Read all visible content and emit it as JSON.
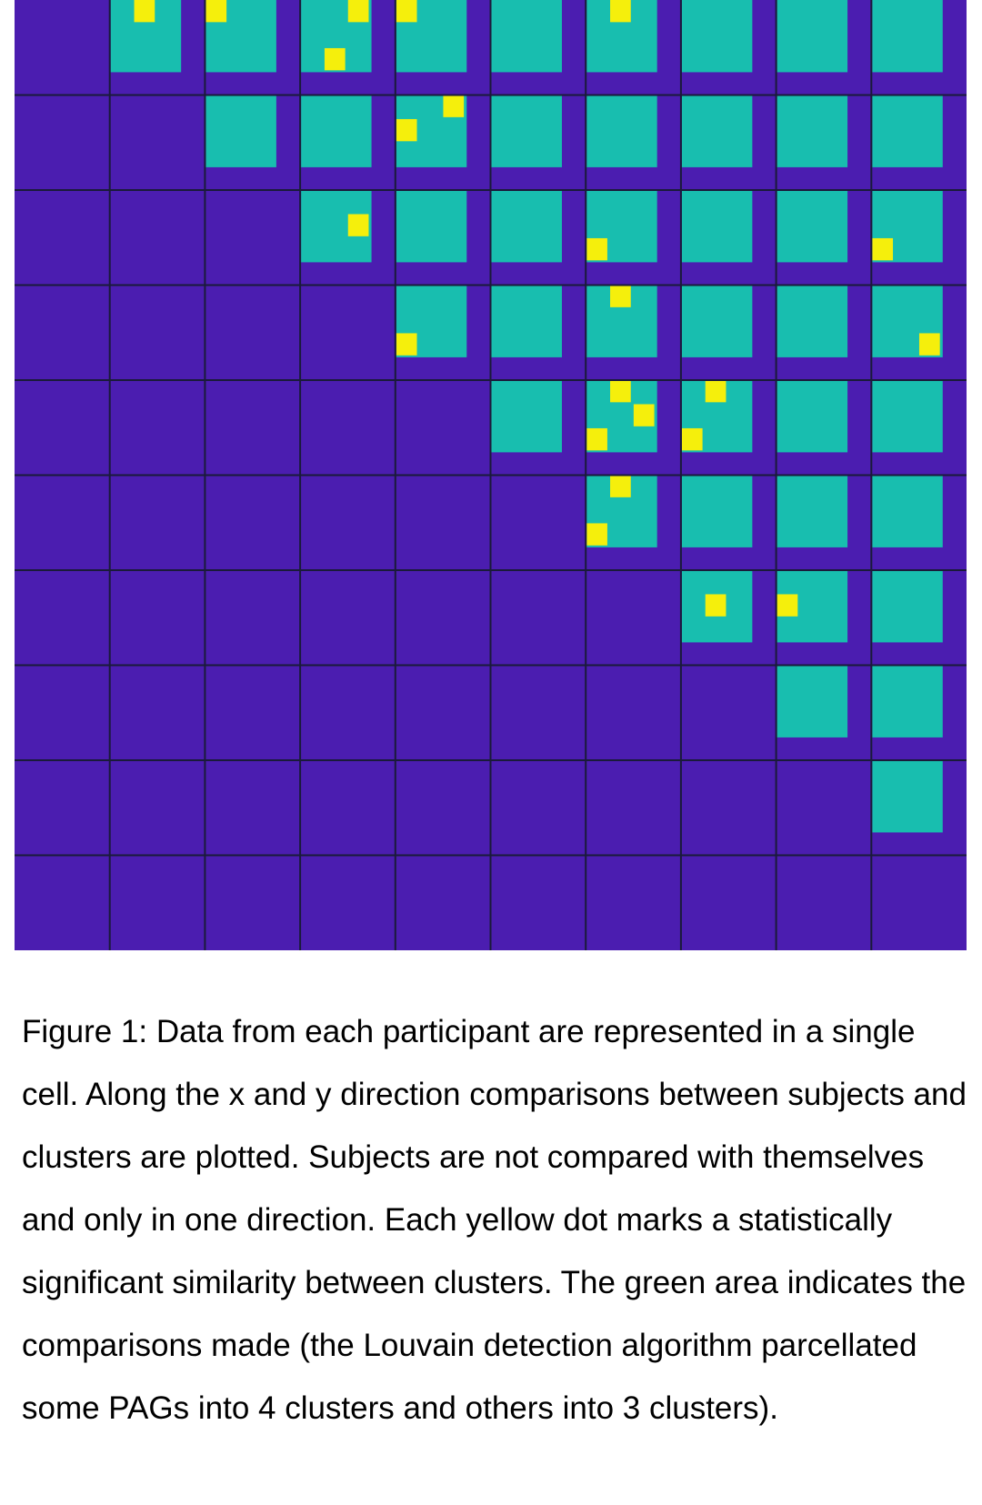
{
  "chart_data": {
    "type": "heatmap",
    "grid_size": 10,
    "colors": {
      "background": "#4B1DB0",
      "comparison_area": "#18BEAF",
      "significant": "#F5EF0C",
      "grid_line": "#1a1a3a"
    },
    "comparison_cells": [
      [
        0,
        1
      ],
      [
        0,
        2
      ],
      [
        0,
        3
      ],
      [
        0,
        4
      ],
      [
        0,
        5
      ],
      [
        0,
        6
      ],
      [
        0,
        7
      ],
      [
        0,
        8
      ],
      [
        0,
        9
      ],
      [
        1,
        2
      ],
      [
        1,
        3
      ],
      [
        1,
        4
      ],
      [
        1,
        5
      ],
      [
        1,
        6
      ],
      [
        1,
        7
      ],
      [
        1,
        8
      ],
      [
        1,
        9
      ],
      [
        2,
        3
      ],
      [
        2,
        4
      ],
      [
        2,
        5
      ],
      [
        2,
        6
      ],
      [
        2,
        7
      ],
      [
        2,
        8
      ],
      [
        2,
        9
      ],
      [
        3,
        4
      ],
      [
        3,
        5
      ],
      [
        3,
        6
      ],
      [
        3,
        7
      ],
      [
        3,
        8
      ],
      [
        3,
        9
      ],
      [
        4,
        5
      ],
      [
        4,
        6
      ],
      [
        4,
        7
      ],
      [
        4,
        8
      ],
      [
        4,
        9
      ],
      [
        5,
        6
      ],
      [
        5,
        7
      ],
      [
        5,
        8
      ],
      [
        5,
        9
      ],
      [
        6,
        7
      ],
      [
        6,
        8
      ],
      [
        6,
        9
      ],
      [
        7,
        8
      ],
      [
        7,
        9
      ],
      [
        8,
        9
      ]
    ],
    "significant_dots": [
      {
        "row": 0,
        "col": 1,
        "sub_x": 1,
        "sub_y": 0
      },
      {
        "row": 0,
        "col": 2,
        "sub_x": 0,
        "sub_y": 0
      },
      {
        "row": 0,
        "col": 3,
        "sub_x": 2,
        "sub_y": 0
      },
      {
        "row": 0,
        "col": 3,
        "sub_x": 1,
        "sub_y": 2
      },
      {
        "row": 0,
        "col": 4,
        "sub_x": 0,
        "sub_y": 0
      },
      {
        "row": 0,
        "col": 6,
        "sub_x": 1,
        "sub_y": 0
      },
      {
        "row": 1,
        "col": 4,
        "sub_x": 2,
        "sub_y": 0
      },
      {
        "row": 1,
        "col": 4,
        "sub_x": 0,
        "sub_y": 1
      },
      {
        "row": 2,
        "col": 3,
        "sub_x": 2,
        "sub_y": 1
      },
      {
        "row": 2,
        "col": 6,
        "sub_x": 0,
        "sub_y": 2
      },
      {
        "row": 2,
        "col": 9,
        "sub_x": 0,
        "sub_y": 2
      },
      {
        "row": 3,
        "col": 4,
        "sub_x": 0,
        "sub_y": 2
      },
      {
        "row": 3,
        "col": 6,
        "sub_x": 1,
        "sub_y": 0
      },
      {
        "row": 3,
        "col": 9,
        "sub_x": 2,
        "sub_y": 2
      },
      {
        "row": 4,
        "col": 6,
        "sub_x": 1,
        "sub_y": 0
      },
      {
        "row": 4,
        "col": 6,
        "sub_x": 2,
        "sub_y": 1
      },
      {
        "row": 4,
        "col": 6,
        "sub_x": 0,
        "sub_y": 2
      },
      {
        "row": 4,
        "col": 7,
        "sub_x": 1,
        "sub_y": 0
      },
      {
        "row": 4,
        "col": 7,
        "sub_x": 0,
        "sub_y": 2
      },
      {
        "row": 5,
        "col": 6,
        "sub_x": 1,
        "sub_y": 0
      },
      {
        "row": 5,
        "col": 6,
        "sub_x": 0,
        "sub_y": 2
      },
      {
        "row": 6,
        "col": 7,
        "sub_x": 1,
        "sub_y": 1
      },
      {
        "row": 6,
        "col": 8,
        "sub_x": 0,
        "sub_y": 1
      }
    ]
  },
  "caption": "Figure 1: Data from each participant are represented in a single cell. Along the x and y direction comparisons between subjects and clusters are plotted. Subjects are not compared with themselves and only in one direction. Each yellow dot marks a statistically significant similarity between clusters. The green area indicates the comparisons made (the Louvain detection algorithm parcellated some PAGs into 4 clusters and others into 3 clusters)."
}
